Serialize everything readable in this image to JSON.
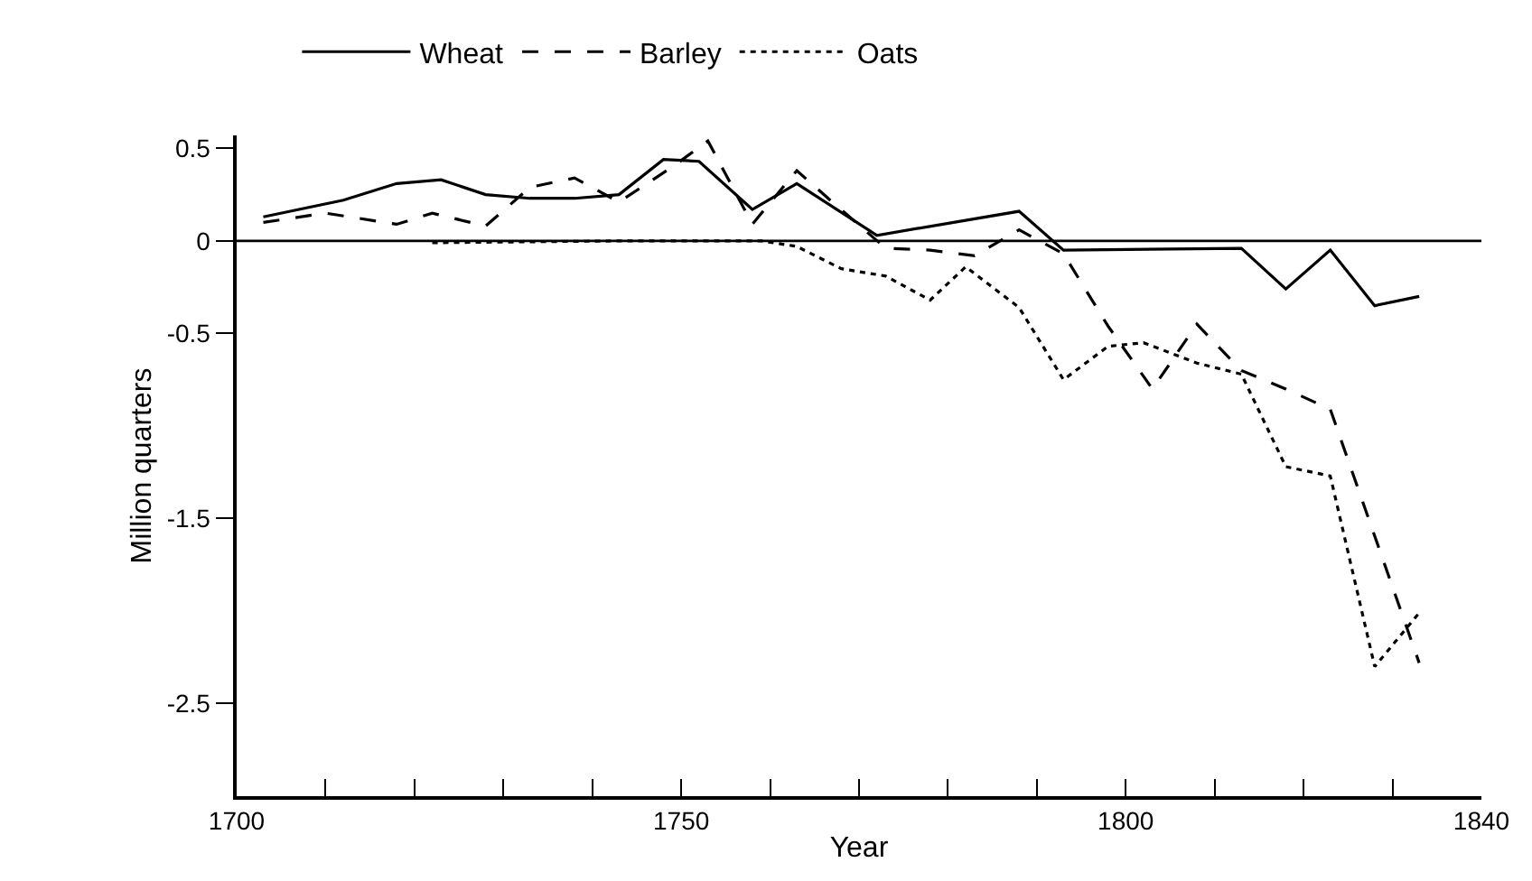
{
  "chart_data": {
    "type": "line",
    "xlabel": "Year",
    "ylabel": "Million quarters",
    "xlim": [
      1700,
      1840
    ],
    "ylim": [
      -3.0,
      0.57
    ],
    "xticks": [
      1700,
      {
        "value": 1710,
        "label": null
      },
      {
        "value": 1720,
        "label": null
      },
      {
        "value": 1730,
        "label": null
      },
      {
        "value": 1740,
        "label": null
      },
      1750,
      {
        "value": 1760,
        "label": null
      },
      {
        "value": 1770,
        "label": null
      },
      {
        "value": 1780,
        "label": null
      },
      {
        "value": 1790,
        "label": null
      },
      1800,
      {
        "value": 1810,
        "label": null
      },
      {
        "value": 1820,
        "label": null
      },
      {
        "value": 1830,
        "label": null
      },
      1840
    ],
    "yticks": [
      0.5,
      0,
      -0.5,
      -1.5,
      -2.5
    ],
    "legend": "top",
    "marker": "none",
    "ref_lines": [
      {
        "axis": "y",
        "value": 0,
        "color": "#000000",
        "line_style": "solid"
      }
    ],
    "series": [
      {
        "name": "Wheat",
        "color": "#000000",
        "line_style": "solid",
        "x": [
          1703,
          1712,
          1718,
          1723,
          1728,
          1733,
          1738,
          1743,
          1748,
          1752,
          1758,
          1763,
          1772,
          1788,
          1793,
          1813,
          1818,
          1823,
          1828,
          1833
        ],
        "values": [
          0.13,
          0.22,
          0.31,
          0.33,
          0.25,
          0.23,
          0.23,
          0.25,
          0.44,
          0.43,
          0.17,
          0.31,
          0.03,
          0.16,
          -0.05,
          -0.04,
          -0.26,
          -0.05,
          -0.35,
          -0.3
        ]
      },
      {
        "name": "Barley",
        "color": "#000000",
        "line_style": "dashed",
        "x": [
          1703,
          1710,
          1718,
          1722,
          1728,
          1733,
          1738,
          1743,
          1749,
          1753,
          1758,
          1763,
          1767,
          1773,
          1778,
          1783,
          1788,
          1793,
          1798,
          1803,
          1808,
          1813,
          1818,
          1823,
          1833
        ],
        "values": [
          0.1,
          0.15,
          0.09,
          0.15,
          0.08,
          0.29,
          0.34,
          0.21,
          0.4,
          0.54,
          0.09,
          0.38,
          0.21,
          -0.04,
          -0.05,
          -0.08,
          0.06,
          -0.07,
          -0.46,
          -0.8,
          -0.45,
          -0.7,
          -0.8,
          -0.91,
          -2.28
        ]
      },
      {
        "name": "Oats",
        "color": "#000000",
        "line_style": "dotted",
        "x": [
          1722,
          1743,
          1759,
          1763,
          1768,
          1773,
          1778,
          1782,
          1788,
          1793,
          1798,
          1802,
          1808,
          1813,
          1818,
          1823,
          1828,
          1833
        ],
        "values": [
          -0.01,
          0,
          0,
          -0.03,
          -0.15,
          -0.19,
          -0.32,
          -0.14,
          -0.36,
          -0.75,
          -0.57,
          -0.55,
          -0.66,
          -0.72,
          -1.22,
          -1.27,
          -2.3,
          -2.01
        ]
      }
    ]
  }
}
